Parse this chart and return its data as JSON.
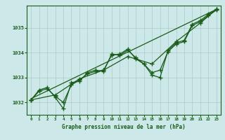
{
  "title": "Graphe pression niveau de la mer (hPa)",
  "bg_color": "#cce8e8",
  "grid_color": "#b0c8c8",
  "line_color": "#1a5c1a",
  "xlim": [
    -0.5,
    23.5
  ],
  "ylim": [
    1031.5,
    1035.9
  ],
  "yticks": [
    1032,
    1033,
    1034,
    1035
  ],
  "xticks": [
    0,
    1,
    2,
    3,
    4,
    5,
    6,
    7,
    8,
    9,
    10,
    11,
    12,
    13,
    14,
    15,
    16,
    17,
    18,
    19,
    20,
    21,
    22,
    23
  ],
  "series": [
    {
      "x": [
        0,
        1,
        2,
        3,
        4,
        5,
        6,
        7,
        8,
        9,
        10,
        11,
        12,
        13,
        14,
        15,
        16,
        17,
        18,
        19,
        20,
        21,
        22,
        23
      ],
      "y": [
        1032.1,
        1032.5,
        1032.6,
        1032.2,
        1031.75,
        1032.8,
        1032.85,
        1033.2,
        1033.3,
        1033.25,
        1033.95,
        1033.9,
        1034.1,
        1033.8,
        1033.55,
        1033.1,
        1033.0,
        1034.1,
        1034.4,
        1034.5,
        1035.15,
        1035.3,
        1035.55,
        1035.75
      ]
    },
    {
      "x": [
        0,
        1,
        2,
        3,
        4,
        5,
        6,
        7,
        8,
        9,
        10,
        11,
        12,
        13,
        14,
        15,
        16,
        17,
        18,
        19,
        20,
        21,
        22,
        23
      ],
      "y": [
        1032.1,
        1032.45,
        1032.55,
        1032.25,
        1032.0,
        1032.7,
        1032.9,
        1033.15,
        1033.25,
        1033.3,
        1033.9,
        1033.95,
        1034.15,
        1033.75,
        1033.55,
        1033.2,
        1033.3,
        1034.05,
        1034.35,
        1034.45,
        1035.1,
        1035.25,
        1035.5,
        1035.72
      ]
    },
    {
      "x": [
        0,
        3,
        6,
        9,
        12,
        15,
        18,
        21,
        23
      ],
      "y": [
        1032.1,
        1032.3,
        1032.95,
        1033.3,
        1033.85,
        1033.55,
        1034.45,
        1035.2,
        1035.75
      ]
    },
    {
      "x": [
        0,
        23
      ],
      "y": [
        1032.15,
        1035.75
      ]
    }
  ]
}
